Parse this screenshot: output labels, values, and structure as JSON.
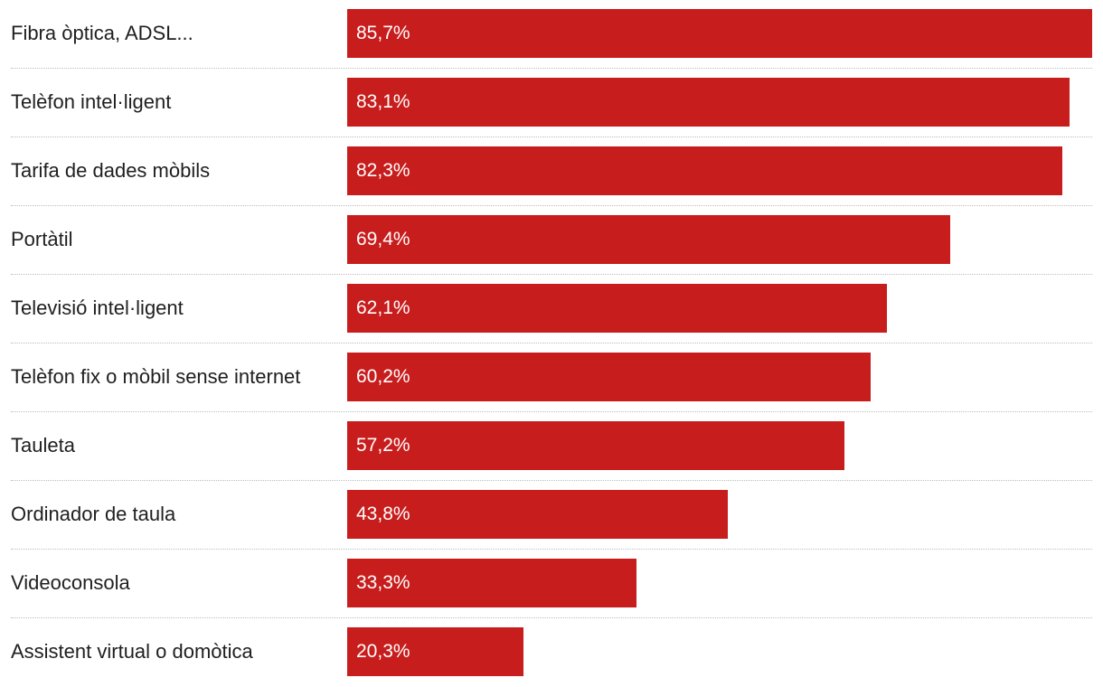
{
  "chart_data": {
    "type": "bar",
    "orientation": "horizontal",
    "categories": [
      "Fibra òptica, ADSL...",
      "Telèfon intel·ligent",
      "Tarifa de dades mòbils",
      "Portàtil",
      "Televisió intel·ligent",
      "Telèfon fix o mòbil sense internet",
      "Tauleta",
      "Ordinador de taula",
      "Videoconsola",
      "Assistent virtual o domòtica"
    ],
    "values": [
      85.7,
      83.1,
      82.3,
      69.4,
      62.1,
      60.2,
      57.2,
      43.8,
      33.3,
      20.3
    ],
    "value_labels": [
      "85,7%",
      "83,1%",
      "82,3%",
      "69,4%",
      "62,1%",
      "60,2%",
      "57,2%",
      "43,8%",
      "33,3%",
      "20,3%"
    ],
    "unit": "%",
    "xlim": [
      0,
      85.7
    ],
    "bar_color": "#c81d1d",
    "label_color": "#ffffff",
    "grid": false,
    "legend": "none"
  }
}
